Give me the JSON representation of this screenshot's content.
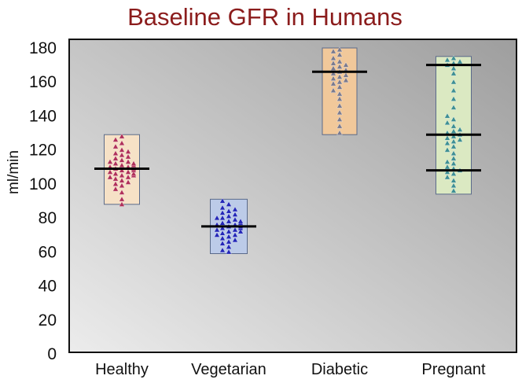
{
  "chart_data": {
    "type": "scatter",
    "title": "Baseline GFR in Humans",
    "xlabel": "",
    "ylabel": "ml/min",
    "ylim": [
      0,
      180
    ],
    "yticks": [
      0,
      20,
      40,
      60,
      80,
      100,
      120,
      140,
      160,
      180
    ],
    "grid": false,
    "categories": [
      "Healthy",
      "Vegetarian",
      "Diabetic",
      "Pregnant"
    ],
    "groups": [
      {
        "category": "Healthy",
        "box_fill": "#f6e1c6",
        "marker_color": "#b0305a",
        "box_range": [
          88,
          129
        ],
        "means": [
          109
        ],
        "points": [
          88,
          91,
          95,
          97,
          99,
          100,
          101,
          102,
          103,
          104,
          104,
          105,
          105,
          106,
          106,
          107,
          107,
          108,
          108,
          109,
          109,
          110,
          110,
          111,
          111,
          112,
          112,
          113,
          113,
          114,
          115,
          116,
          117,
          118,
          119,
          120,
          122,
          124,
          126,
          128
        ]
      },
      {
        "category": "Vegetarian",
        "box_fill": "#bccbe8",
        "marker_color": "#2326b8",
        "box_range": [
          59,
          91
        ],
        "means": [
          75
        ],
        "points": [
          60,
          61,
          63,
          65,
          66,
          67,
          68,
          69,
          70,
          70,
          71,
          72,
          72,
          73,
          73,
          74,
          74,
          75,
          75,
          76,
          76,
          77,
          77,
          78,
          78,
          79,
          80,
          80,
          81,
          82,
          83,
          84,
          85,
          86,
          88,
          90
        ]
      },
      {
        "category": "Diabetic",
        "box_fill": "#f1c89a",
        "marker_color": "#7a7a8e",
        "box_range": [
          129,
          180
        ],
        "means": [
          166
        ],
        "points": [
          130,
          134,
          138,
          142,
          146,
          150,
          153,
          155,
          157,
          159,
          160,
          161,
          162,
          163,
          164,
          165,
          166,
          167,
          168,
          169,
          170,
          171,
          172,
          174,
          176,
          178,
          179
        ]
      },
      {
        "category": "Pregnant",
        "box_fill": "#dbe9c2",
        "marker_color": "#3e8f94",
        "box_range": [
          94,
          175
        ],
        "means": [
          108,
          129,
          170
        ],
        "points": [
          96,
          99,
          102,
          104,
          106,
          107,
          108,
          109,
          110,
          112,
          113,
          115,
          118,
          120,
          122,
          124,
          125,
          126,
          127,
          128,
          129,
          130,
          131,
          132,
          134,
          136,
          138,
          140,
          145,
          150,
          155,
          160,
          165,
          168,
          170,
          171,
          172,
          173,
          174
        ]
      }
    ]
  }
}
